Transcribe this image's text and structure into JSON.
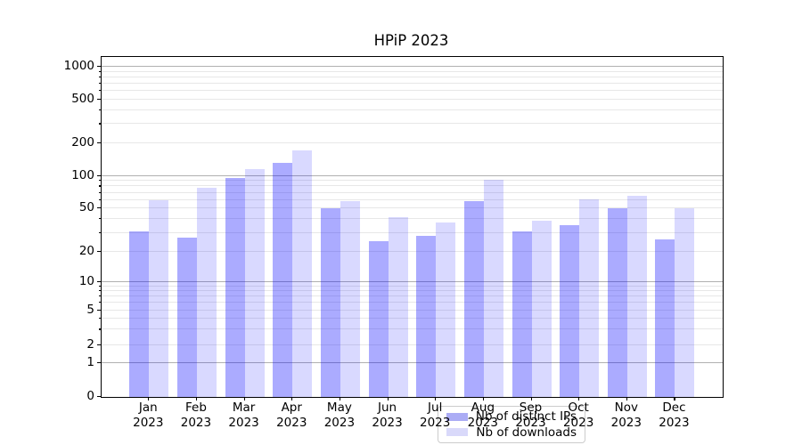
{
  "title": "HPiP 2023",
  "colors": {
    "bar_distinct_ips": "rgba(0,0,255,0.33)",
    "bar_distinct_ips_flat": "#abacf5",
    "bar_downloads": "rgba(0,0,255,0.15)",
    "bar_downloads_flat": "#d9d9fa",
    "major_gridline": "#b0b0b0",
    "minor_gridline": "#e7e7e7",
    "axis": "#000000",
    "legend_border": "#cccccc"
  },
  "legend": {
    "items": [
      {
        "label": "Nb of distinct IPs",
        "series": "distinct_ips"
      },
      {
        "label": "Nb of downloads",
        "series": "downloads"
      }
    ]
  },
  "y_axis": {
    "tick_labels": [
      "1000",
      "500",
      "200",
      "100",
      "50",
      "20",
      "10",
      "5",
      "2",
      "1",
      "0"
    ]
  },
  "x_axis": {
    "tick_labels": [
      "Jan 2023",
      "Feb 2023",
      "Mar 2023",
      "Apr 2023",
      "May 2023",
      "Jun 2023",
      "Jul 2023",
      "Aug 2023",
      "Sep 2023",
      "Oct 2023",
      "Nov 2023",
      "Dec 2023"
    ]
  },
  "chart_data": {
    "type": "bar",
    "title": "HPiP 2023",
    "categories": [
      "Jan 2023",
      "Feb 2023",
      "Mar 2023",
      "Apr 2023",
      "May 2023",
      "Jun 2023",
      "Jul 2023",
      "Aug 2023",
      "Sep 2023",
      "Oct 2023",
      "Nov 2023",
      "Dec 2023"
    ],
    "series": [
      {
        "name": "Nb of distinct IPs",
        "key": "distinct_ips",
        "values": [
          31,
          27,
          95,
          131,
          50,
          25,
          28,
          58,
          31,
          35,
          50,
          26
        ]
      },
      {
        "name": "Nb of downloads",
        "key": "downloads",
        "values": [
          60,
          78,
          115,
          172,
          59,
          42,
          37,
          93,
          39,
          61,
          65,
          50
        ]
      }
    ],
    "xlabel": "",
    "ylabel": "",
    "yscale": "symlog",
    "y_ticks": [
      0,
      1,
      2,
      5,
      10,
      20,
      50,
      100,
      200,
      500,
      1000
    ],
    "ylim": [
      0,
      1230
    ],
    "grid": true,
    "legend_position": "lower center"
  }
}
